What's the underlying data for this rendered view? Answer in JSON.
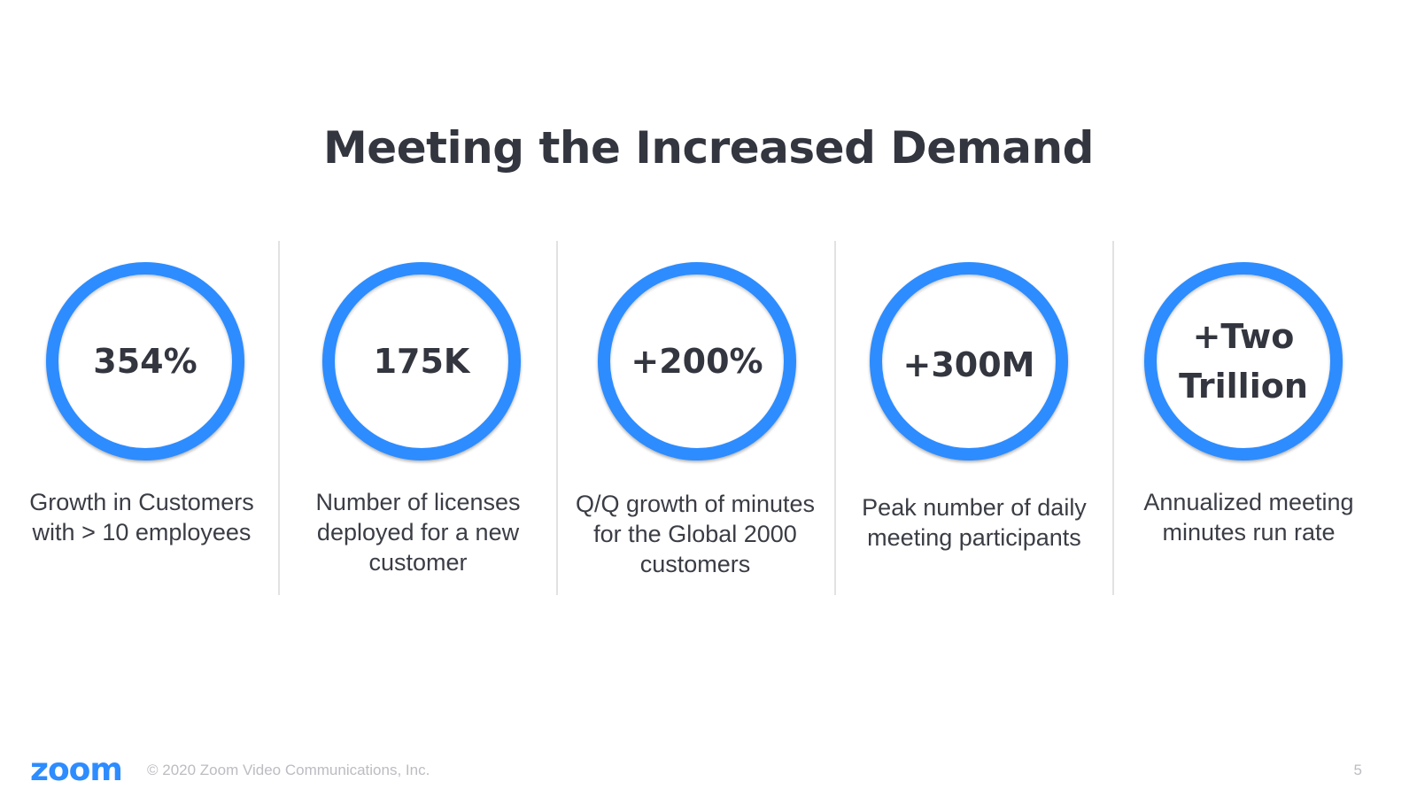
{
  "slide": {
    "title": "Meeting the Increased Demand",
    "stats": [
      {
        "value": "354%",
        "description": "Growth in Customers with > 10 employees"
      },
      {
        "value": "175K",
        "description": "Number of licenses deployed for a new customer"
      },
      {
        "value": "+200%",
        "description": "Q/Q growth of minutes for the Global 2000 customers"
      },
      {
        "value": "+300M",
        "description": "Peak number of daily meeting participants"
      },
      {
        "value": "+Two\nTrillion",
        "description": "Annualized meeting minutes run rate"
      }
    ]
  },
  "footer": {
    "logo_text": "zoom",
    "copyright": "© 2020 Zoom Video Communications, Inc.",
    "page_number": "5"
  },
  "colors": {
    "accent": "#2d8cff",
    "title": "#33353f",
    "footer_text": "#bcbcc2"
  }
}
